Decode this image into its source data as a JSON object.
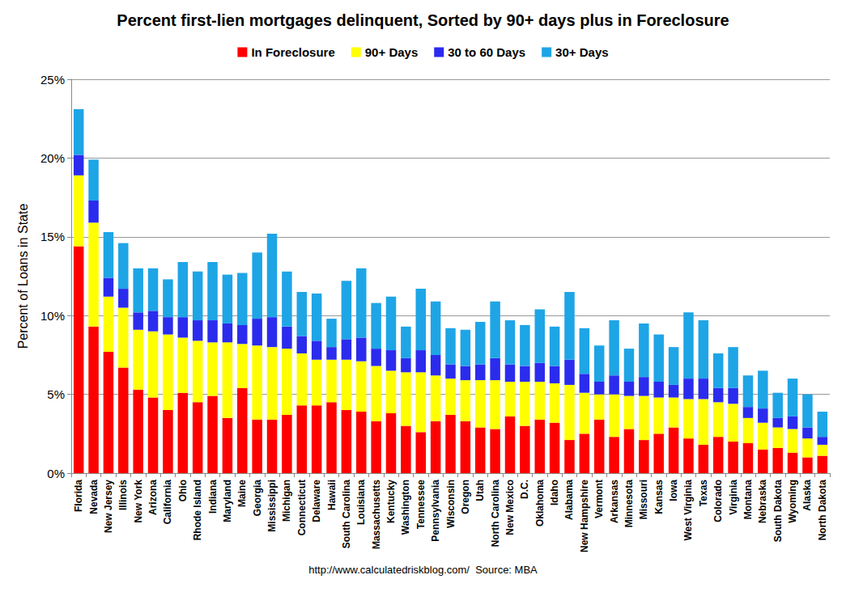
{
  "chart_data": {
    "type": "bar",
    "title": "Percent first-lien mortgages delinquent, Sorted by 90+ days plus in Foreclosure",
    "y_label": "Percent of Loans in State",
    "annotations": [
      "http://www.calculatedriskblog.com/  Source: MBA"
    ],
    "categories": [
      "Florida",
      "Nevada",
      "New Jersey",
      "Illinois",
      "New York",
      "Arizona",
      "California",
      "Ohio",
      "Rhode Island",
      "Indiana",
      "Maryland",
      "Maine",
      "Georgia",
      "Mississippi",
      "Michigan",
      "Connecticut",
      "Delaware",
      "Hawaii",
      "South Carolina",
      "Louisiana",
      "Massachusetts",
      "Kentucky",
      "Washington",
      "Tennessee",
      "Pennsylvania",
      "Wisconsin",
      "Oregon",
      "Utah",
      "North Carolina",
      "New Mexico",
      "D.C.",
      "Oklahoma",
      "Idaho",
      "Alabama",
      "New Hampshire",
      "Vermont",
      "Arkansas",
      "Minnesota",
      "Missouri",
      "Kansas",
      "Iowa",
      "West Virginia",
      "Texas",
      "Colorado",
      "Virginia",
      "Montana",
      "Nebraska",
      "South Dakota",
      "Wyoming",
      "Alaska",
      "North Dakota"
    ],
    "series": [
      {
        "name": "In Foreclosure",
        "color": "#ff0000",
        "values": [
          14.4,
          9.3,
          7.7,
          6.7,
          5.3,
          4.8,
          4.0,
          5.1,
          4.5,
          4.9,
          3.5,
          5.4,
          3.4,
          3.4,
          3.7,
          4.3,
          4.3,
          4.5,
          4.0,
          3.9,
          3.3,
          3.8,
          3.0,
          2.6,
          3.3,
          3.7,
          3.3,
          2.9,
          2.8,
          3.6,
          3.0,
          3.4,
          3.2,
          2.1,
          2.5,
          3.4,
          2.3,
          2.8,
          2.1,
          2.5,
          2.9,
          2.2,
          1.8,
          2.3,
          2.0,
          1.9,
          1.5,
          1.6,
          1.3,
          1.0,
          1.1
        ]
      },
      {
        "name": "90+ Days",
        "color": "#ffff00",
        "values": [
          4.5,
          6.6,
          3.5,
          3.8,
          3.8,
          4.2,
          4.8,
          3.5,
          3.9,
          3.4,
          4.8,
          2.8,
          4.7,
          4.6,
          4.2,
          3.3,
          2.9,
          2.7,
          3.2,
          3.2,
          3.5,
          2.7,
          3.4,
          3.8,
          2.9,
          2.3,
          2.6,
          3.0,
          3.1,
          2.2,
          2.8,
          2.4,
          2.5,
          3.5,
          2.6,
          1.6,
          2.7,
          2.1,
          2.8,
          2.3,
          1.9,
          2.5,
          2.9,
          2.2,
          2.4,
          1.6,
          1.7,
          1.3,
          1.5,
          1.2,
          0.7
        ]
      },
      {
        "name": "30 to 60 Days",
        "color": "#2b2bee",
        "values": [
          1.3,
          1.4,
          1.2,
          1.2,
          1.1,
          1.3,
          1.1,
          1.3,
          1.3,
          1.4,
          1.2,
          1.2,
          1.7,
          1.9,
          1.4,
          1.1,
          1.2,
          0.8,
          1.3,
          1.5,
          1.1,
          1.3,
          0.9,
          1.4,
          1.3,
          0.9,
          0.9,
          1.0,
          1.4,
          1.1,
          1.0,
          1.2,
          1.1,
          1.6,
          1.2,
          0.8,
          1.2,
          0.9,
          1.2,
          1.0,
          0.8,
          1.3,
          1.3,
          0.9,
          1.0,
          0.7,
          0.9,
          0.6,
          0.8,
          0.7,
          0.5
        ]
      },
      {
        "name": "30+ Days",
        "color": "#1ea5e6",
        "values": [
          2.9,
          2.6,
          2.9,
          2.9,
          2.8,
          2.7,
          2.4,
          3.5,
          3.1,
          3.7,
          3.1,
          3.3,
          4.2,
          5.3,
          3.5,
          2.8,
          3.0,
          1.8,
          3.7,
          4.4,
          2.9,
          3.4,
          2.0,
          3.9,
          3.4,
          2.3,
          2.3,
          2.7,
          3.6,
          2.8,
          2.6,
          3.4,
          2.5,
          4.3,
          2.9,
          2.3,
          3.5,
          2.1,
          3.4,
          3.0,
          2.4,
          4.2,
          3.7,
          2.2,
          2.6,
          2.0,
          2.4,
          1.6,
          2.4,
          2.1,
          1.6
        ]
      }
    ],
    "stacked": true,
    "ylim": [
      0,
      25
    ],
    "yticks": [
      {
        "value": 0,
        "label": "0%"
      },
      {
        "value": 5,
        "label": "5%"
      },
      {
        "value": 10,
        "label": "10%"
      },
      {
        "value": 15,
        "label": "15%"
      },
      {
        "value": 20,
        "label": "20%"
      },
      {
        "value": 25,
        "label": "25%"
      }
    ],
    "grid": true,
    "legend": "top"
  }
}
